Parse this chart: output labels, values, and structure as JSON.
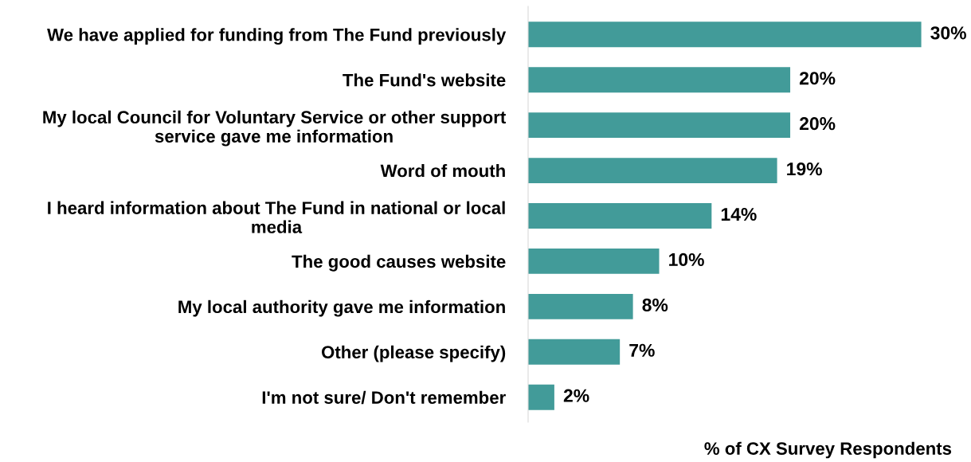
{
  "chart_data": {
    "type": "bar",
    "orientation": "horizontal",
    "categories": [
      "We have applied for funding from The Fund previously",
      "The Fund's website",
      "My local Council for Voluntary Service or other support service gave me information",
      "Word of mouth",
      "I heard information about The Fund in national or local media",
      "The good causes website",
      "My local authority gave me information",
      "Other (please specify)",
      "I'm not sure/ Don't remember"
    ],
    "values": [
      30,
      20,
      20,
      19,
      14,
      10,
      8,
      7,
      2
    ],
    "value_labels": [
      "30%",
      "20%",
      "20%",
      "19%",
      "14%",
      "10%",
      "8%",
      "7%",
      "2%"
    ],
    "color": "#429b99",
    "xlabel": "% of CX Survey Respondents",
    "grid": false
  }
}
